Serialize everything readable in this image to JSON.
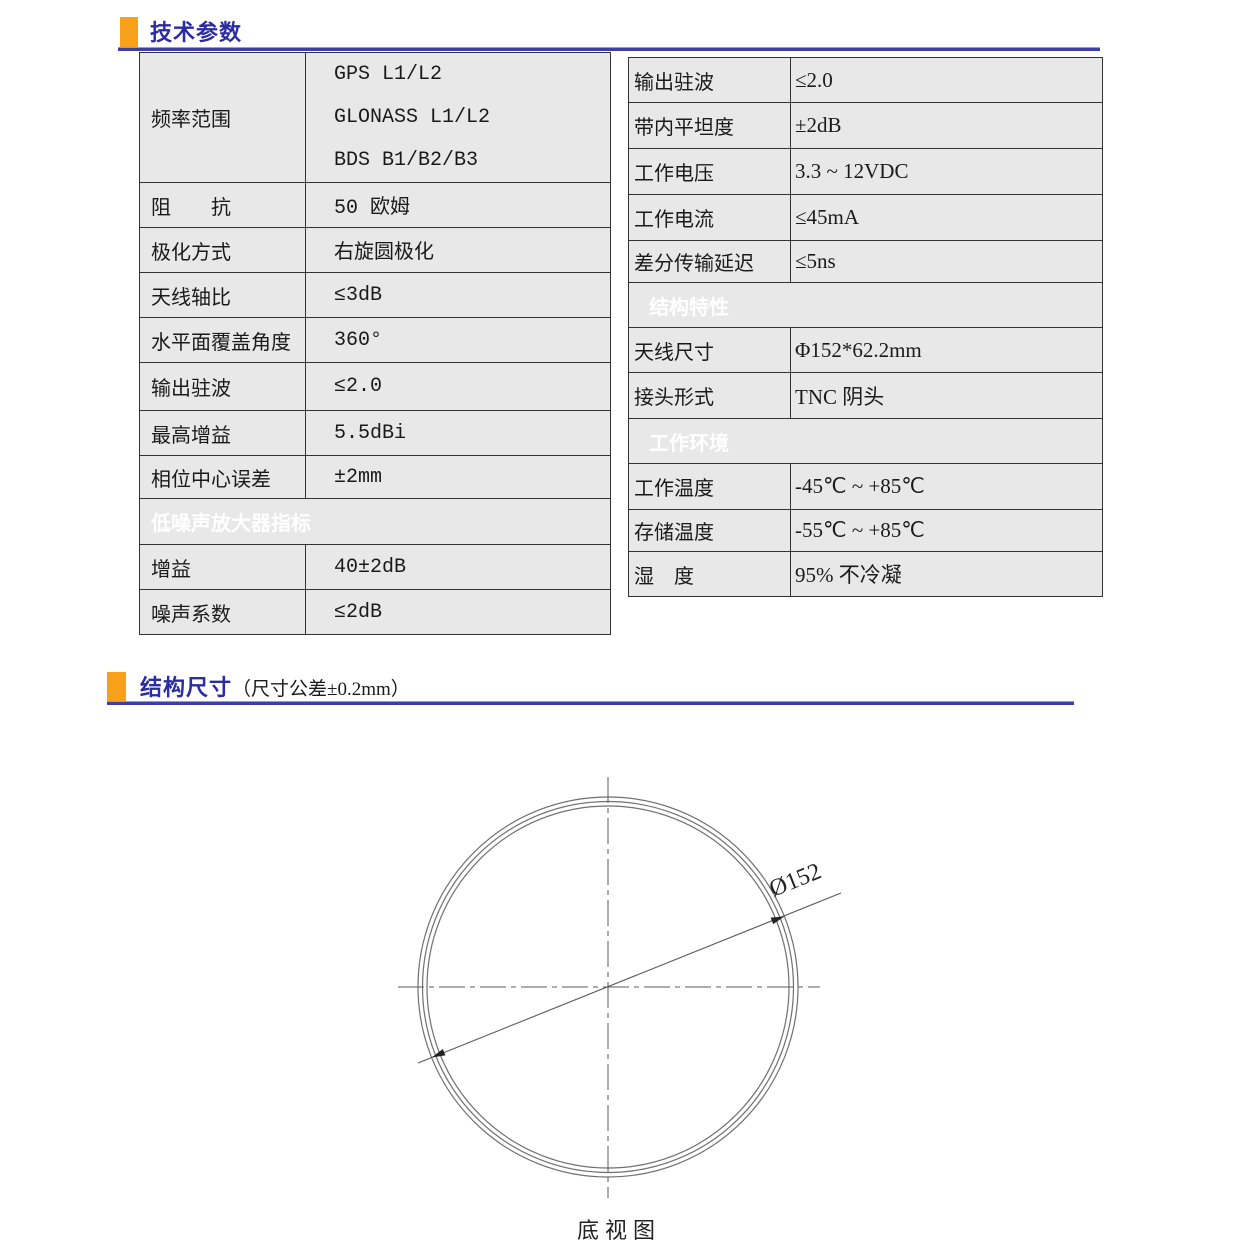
{
  "colors": {
    "accent_orange": "#F7A11A",
    "heading_text": "#2B2BA3",
    "heading_rule": "#3D3DAB",
    "band_blue": "#1F4E79",
    "cell_background": "#E8E8E8",
    "cell_border": "#333333"
  },
  "section1": {
    "title": "技术参数"
  },
  "section2": {
    "title": "结构尺寸",
    "note": "（尺寸公差±0.2mm）"
  },
  "tables": {
    "left": {
      "rows": [
        {
          "label": "频率范围",
          "value": [
            "GPS L1/L2",
            "GLONASS L1/L2",
            "BDS  B1/B2/B3"
          ]
        },
        {
          "label": "阻　　抗",
          "value": "50 欧姆"
        },
        {
          "label": "极化方式",
          "value": "右旋圆极化"
        },
        {
          "label": "天线轴比",
          "value": "≤3dB"
        },
        {
          "label": "水平面覆盖角度",
          "value": "360°"
        },
        {
          "label": "输出驻波",
          "value": "≤2.0"
        },
        {
          "label": "最高增益",
          "value": "5.5dBi"
        },
        {
          "label": "相位中心误差",
          "value": "±2mm"
        },
        {
          "band": "低噪声放大器指标"
        },
        {
          "label": "增益",
          "value": "40±2dB"
        },
        {
          "label": "噪声系数",
          "value": "≤2dB"
        }
      ]
    },
    "right": {
      "rows": [
        {
          "label": "输出驻波",
          "value": "≤2.0"
        },
        {
          "label": "带内平坦度",
          "value": "±2dB"
        },
        {
          "label": "工作电压",
          "value": "3.3 ~ 12VDC"
        },
        {
          "label": "工作电流",
          "value": "≤45mA"
        },
        {
          "label": "差分传输延迟",
          "value": "≤5ns"
        },
        {
          "band": "结构特性"
        },
        {
          "label": "天线尺寸",
          "value": "Φ152*62.2mm"
        },
        {
          "label": "接头形式",
          "value": "TNC 阴头"
        },
        {
          "band": "工作环境"
        },
        {
          "label": "工作温度",
          "value": "-45℃ ~ +85℃"
        },
        {
          "label": "存储温度",
          "value": "-55℃ ~ +85℃"
        },
        {
          "label": "湿　度",
          "value": "95% 不冷凝"
        }
      ]
    }
  },
  "drawing": {
    "dim_label": "Ø152",
    "caption": "底视图"
  }
}
